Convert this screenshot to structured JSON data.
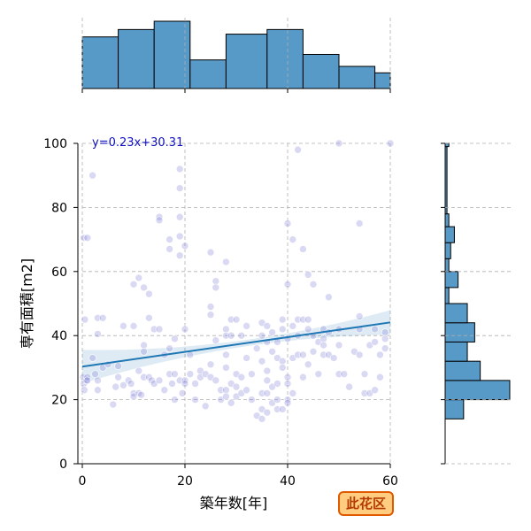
{
  "chart_data": {
    "type": "scatter",
    "xlabel": "築年数[年]",
    "ylabel": "専有面積[m2]",
    "xlim": [
      0,
      60
    ],
    "ylim": [
      0,
      100
    ],
    "xticks": [
      0,
      20,
      40,
      60
    ],
    "yticks": [
      0,
      20,
      40,
      60,
      80,
      100
    ],
    "grid": true,
    "regression": {
      "label": "y=0.23x+30.31",
      "slope": 0.23,
      "intercept": 30.31
    },
    "badge": "此花区",
    "points": [
      [
        0.3,
        70.5
      ],
      [
        0.5,
        45
      ],
      [
        0.2,
        27
      ],
      [
        0.3,
        25
      ],
      [
        0.4,
        23
      ],
      [
        0.8,
        26
      ],
      [
        1,
        27
      ],
      [
        1,
        70.5
      ],
      [
        2,
        90
      ],
      [
        2,
        33
      ],
      [
        2.5,
        28
      ],
      [
        3,
        45.5
      ],
      [
        3,
        40.5
      ],
      [
        3,
        26
      ],
      [
        3,
        23
      ],
      [
        4,
        45.5
      ],
      [
        4,
        30
      ],
      [
        5,
        31
      ],
      [
        6,
        18.5
      ],
      [
        6.5,
        24
      ],
      [
        7,
        30.5
      ],
      [
        7,
        27
      ],
      [
        8,
        43
      ],
      [
        8,
        24.5
      ],
      [
        9,
        26
      ],
      [
        9.5,
        25
      ],
      [
        10,
        43
      ],
      [
        10,
        22
      ],
      [
        10,
        21
      ],
      [
        10,
        56
      ],
      [
        11,
        58
      ],
      [
        11,
        29
      ],
      [
        11,
        22
      ],
      [
        11.5,
        21.5
      ],
      [
        12,
        55
      ],
      [
        12,
        37
      ],
      [
        12,
        35
      ],
      [
        12,
        27
      ],
      [
        13,
        53
      ],
      [
        13,
        45.5
      ],
      [
        13,
        27
      ],
      [
        13.5,
        26
      ],
      [
        14,
        42
      ],
      [
        14,
        25
      ],
      [
        15,
        77
      ],
      [
        15,
        76
      ],
      [
        15,
        42
      ],
      [
        15,
        26
      ],
      [
        16,
        34
      ],
      [
        16,
        23
      ],
      [
        17,
        70
      ],
      [
        17,
        67
      ],
      [
        17,
        36
      ],
      [
        17,
        28
      ],
      [
        17.5,
        25
      ],
      [
        18,
        20
      ],
      [
        18,
        39
      ],
      [
        18,
        28
      ],
      [
        19,
        92
      ],
      [
        19,
        86
      ],
      [
        19,
        77
      ],
      [
        19,
        71
      ],
      [
        19,
        65
      ],
      [
        19,
        26
      ],
      [
        19.5,
        22
      ],
      [
        20,
        68
      ],
      [
        20,
        42
      ],
      [
        20,
        26
      ],
      [
        20,
        25
      ],
      [
        21,
        34
      ],
      [
        21,
        28
      ],
      [
        22,
        25
      ],
      [
        22,
        20
      ],
      [
        23,
        29
      ],
      [
        23,
        27
      ],
      [
        24,
        28
      ],
      [
        24,
        18
      ],
      [
        25,
        66
      ],
      [
        25,
        49
      ],
      [
        25,
        46.5
      ],
      [
        25,
        31
      ],
      [
        25,
        27
      ],
      [
        26,
        57
      ],
      [
        26,
        55
      ],
      [
        26,
        38.5
      ],
      [
        26,
        26
      ],
      [
        27,
        20
      ],
      [
        27,
        23
      ],
      [
        28,
        42
      ],
      [
        28,
        40
      ],
      [
        28,
        34
      ],
      [
        28,
        30
      ],
      [
        28,
        23
      ],
      [
        28,
        21
      ],
      [
        28,
        63
      ],
      [
        29,
        45
      ],
      [
        29,
        40
      ],
      [
        29,
        25
      ],
      [
        29,
        19
      ],
      [
        30,
        45
      ],
      [
        30,
        28
      ],
      [
        30,
        24
      ],
      [
        30,
        21
      ],
      [
        31,
        40
      ],
      [
        31,
        27
      ],
      [
        31,
        22
      ],
      [
        32,
        43
      ],
      [
        32,
        33
      ],
      [
        32,
        23
      ],
      [
        33,
        28
      ],
      [
        33,
        20
      ],
      [
        34,
        36
      ],
      [
        34,
        15
      ],
      [
        35,
        44
      ],
      [
        35,
        40
      ],
      [
        35,
        32
      ],
      [
        35,
        22
      ],
      [
        35,
        17
      ],
      [
        35,
        14
      ],
      [
        36,
        43
      ],
      [
        36,
        38
      ],
      [
        36,
        29
      ],
      [
        36,
        26
      ],
      [
        36,
        22
      ],
      [
        36,
        16
      ],
      [
        37,
        41
      ],
      [
        37,
        35
      ],
      [
        37,
        24
      ],
      [
        37,
        19
      ],
      [
        38,
        38
      ],
      [
        38,
        33
      ],
      [
        38,
        25
      ],
      [
        38,
        20
      ],
      [
        38,
        17
      ],
      [
        39,
        45
      ],
      [
        39,
        42
      ],
      [
        39,
        32
      ],
      [
        39,
        30
      ],
      [
        39,
        17
      ],
      [
        40,
        75
      ],
      [
        40,
        56
      ],
      [
        40,
        39
      ],
      [
        40,
        27
      ],
      [
        40,
        25
      ],
      [
        40,
        20
      ],
      [
        40,
        19
      ],
      [
        41,
        70
      ],
      [
        41,
        43
      ],
      [
        41,
        33
      ],
      [
        41,
        22
      ],
      [
        42,
        98
      ],
      [
        42,
        45
      ],
      [
        42,
        40
      ],
      [
        42,
        34
      ],
      [
        43,
        67
      ],
      [
        43,
        45
      ],
      [
        43,
        34
      ],
      [
        43,
        27
      ],
      [
        44,
        59
      ],
      [
        44,
        45
      ],
      [
        44,
        42
      ],
      [
        44,
        31
      ],
      [
        45,
        56
      ],
      [
        45,
        40
      ],
      [
        45,
        35
      ],
      [
        46,
        38
      ],
      [
        46,
        28
      ],
      [
        47,
        42
      ],
      [
        47,
        39
      ],
      [
        47,
        37
      ],
      [
        47,
        34
      ],
      [
        48,
        52
      ],
      [
        48,
        41
      ],
      [
        48,
        34
      ],
      [
        49,
        33
      ],
      [
        50,
        100
      ],
      [
        50,
        42
      ],
      [
        50,
        37
      ],
      [
        50,
        28
      ],
      [
        51,
        28
      ],
      [
        52,
        24
      ],
      [
        53,
        35
      ],
      [
        54,
        75
      ],
      [
        54,
        46
      ],
      [
        54,
        42
      ],
      [
        54,
        34
      ],
      [
        55,
        28
      ],
      [
        55,
        22
      ],
      [
        56,
        37
      ],
      [
        56,
        22
      ],
      [
        57,
        42
      ],
      [
        57,
        38
      ],
      [
        57,
        23
      ],
      [
        58,
        34
      ],
      [
        58,
        27
      ],
      [
        59,
        41
      ],
      [
        59,
        39
      ],
      [
        59,
        36
      ],
      [
        60,
        100
      ],
      [
        1,
        26
      ]
    ],
    "marginal_x": {
      "bins": [
        [
          0,
          7
        ],
        [
          7,
          14
        ],
        [
          14,
          21
        ],
        [
          21,
          28
        ],
        [
          28,
          36
        ],
        [
          36,
          43
        ],
        [
          43,
          50
        ],
        [
          50,
          57
        ],
        [
          57,
          60
        ]
      ],
      "counts": [
        56,
        64,
        73,
        31,
        59,
        64,
        37,
        24,
        17
      ]
    },
    "marginal_y": {
      "bins": [
        [
          14,
          20
        ],
        [
          20,
          26
        ],
        [
          26,
          32
        ],
        [
          32,
          38
        ],
        [
          38,
          44
        ],
        [
          44,
          50
        ],
        [
          50,
          55
        ],
        [
          55,
          60
        ],
        [
          60,
          64
        ],
        [
          64,
          69
        ],
        [
          69,
          74
        ],
        [
          74,
          78
        ],
        [
          78,
          99
        ],
        [
          99,
          100
        ]
      ],
      "counts": [
        10,
        35,
        19,
        12,
        16,
        12,
        2,
        7,
        2,
        3,
        5,
        2,
        1,
        2
      ]
    }
  }
}
